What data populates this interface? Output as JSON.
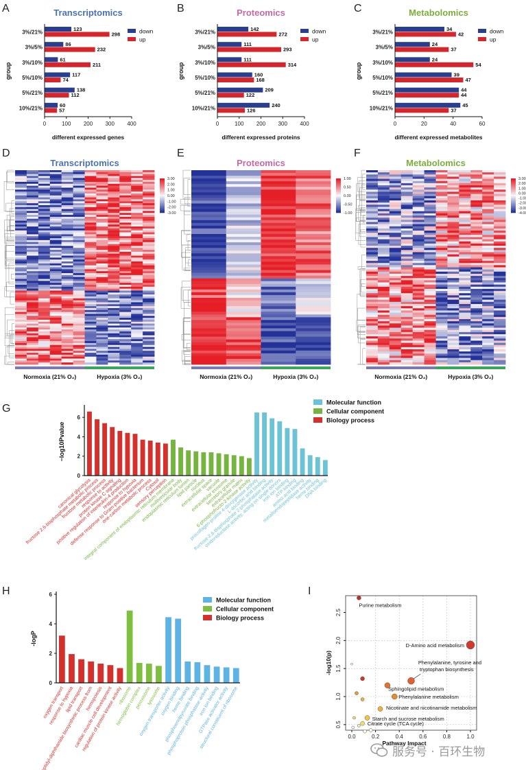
{
  "panels": {
    "A": "A",
    "B": "B",
    "C": "C",
    "D": "D",
    "E": "E",
    "F": "F",
    "G": "G",
    "H": "H",
    "I": "I"
  },
  "colors": {
    "down": "#283f8f",
    "up": "#d7262b",
    "transcriptomics": "#4a72b4",
    "proteomics": "#c668a8",
    "metabolomics": "#7cae3c",
    "mf": "#6cc3d6",
    "cc": "#76b440",
    "bp": "#d4302c",
    "mf_h": "#5db3e4",
    "cc_h": "#7fbf3f",
    "bp_h": "#d4302c"
  },
  "bar_legend": {
    "down": "down",
    "up": "up"
  },
  "bar_group_label": "group",
  "heat_labels": {
    "normoxia": "Normoxia (21% O₂)",
    "hypoxia": "Hypoxia (3% O₂)"
  },
  "go_legend": {
    "mf": "Molecular function",
    "cc": "Cellular component",
    "bp": "Biology process"
  },
  "watermark": {
    "text": "服务号 · 百环生物",
    "icon": "wechat-icon"
  },
  "chart_data": [
    {
      "id": "A",
      "type": "bar",
      "title": "Transcriptomics",
      "categories": [
        "3%/21%",
        "3%/5%",
        "3%/10%",
        "5%/10%",
        "5%/21%",
        "10%/21%"
      ],
      "series": [
        {
          "name": "down",
          "values": [
            123,
            86,
            61,
            117,
            138,
            60
          ]
        },
        {
          "name": "up",
          "values": [
            298,
            232,
            211,
            74,
            112,
            57
          ]
        }
      ],
      "xlabel": "different expressed genes",
      "ylabel": "group",
      "xlim": [
        0,
        400
      ],
      "xticks": [
        0,
        100,
        200,
        300,
        400
      ]
    },
    {
      "id": "B",
      "type": "bar",
      "title": "Proteomics",
      "categories": [
        "3%/21%",
        "3%/5%",
        "3%/10%",
        "5%/10%",
        "5%/21%",
        "10%/21%"
      ],
      "series": [
        {
          "name": "down",
          "values": [
            142,
            111,
            111,
            160,
            209,
            240
          ]
        },
        {
          "name": "up",
          "values": [
            272,
            293,
            314,
            168,
            122,
            126
          ]
        }
      ],
      "xlabel": "different expressed proteins",
      "ylabel": "group",
      "xlim": [
        0,
        400
      ],
      "xticks": [
        0,
        100,
        200,
        300,
        400
      ]
    },
    {
      "id": "C",
      "type": "bar",
      "title": "Metabolomics",
      "categories": [
        "3%/21%",
        "3%/5%",
        "3%/10%",
        "5%/10%",
        "5%/21%",
        "10%/21%"
      ],
      "series": [
        {
          "name": "down",
          "values": [
            34,
            24,
            24,
            39,
            44,
            45
          ]
        },
        {
          "name": "up",
          "values": [
            42,
            37,
            54,
            47,
            44,
            37
          ]
        }
      ],
      "xlabel": "different expressed metabolites",
      "ylabel": "group",
      "xlim": [
        0,
        60
      ],
      "xticks": [
        0,
        20,
        40,
        60
      ]
    },
    {
      "id": "D",
      "type": "heatmap",
      "title": "Transcriptomics",
      "colorbar": [
        "3.00",
        "2.00",
        "1.00",
        "0.00",
        "-1.00",
        "-2.00",
        "-3.00"
      ],
      "groups": [
        "Normoxia (21% O₂)",
        "Hypoxia (3% O₂)"
      ]
    },
    {
      "id": "E",
      "type": "heatmap",
      "title": "Proteomics",
      "colorbar": [
        "1.00",
        "0.50",
        "0.00",
        "-0.50",
        "-1.00"
      ],
      "groups": [
        "Normoxia (21% O₂)",
        "Hypoxia (3% O₂)"
      ]
    },
    {
      "id": "F",
      "type": "heatmap",
      "title": "Metabolomics",
      "colorbar": [
        "3.00",
        "2.00",
        "1.00",
        "0.00",
        "-1.00",
        "-2.00",
        "-3.00",
        "-4.00"
      ],
      "groups": [
        "Normoxia (21% O₂)",
        "Hypoxia (3% O₂)"
      ]
    },
    {
      "id": "G",
      "type": "bar",
      "ylabel": "−log10Pvalue",
      "ylim": [
        0,
        7
      ],
      "yticks": [
        0,
        2,
        4,
        6
      ],
      "bars": [
        {
          "label": "canonical glycolysis",
          "value": 6.6,
          "group": "bp"
        },
        {
          "label": "fructose 2,6-bisphosphate metabolic process",
          "value": 5.8,
          "group": "bp"
        },
        {
          "label": "fructose metabolic process",
          "value": 5.4,
          "group": "bp"
        },
        {
          "label": "response to activity",
          "value": 5.0,
          "group": "bp"
        },
        {
          "label": "protein kinase C signaling",
          "value": 4.6,
          "group": "bp"
        },
        {
          "label": "positive regulation of interleukin-4 production",
          "value": 4.4,
          "group": "bp"
        },
        {
          "label": "response to hypoxia",
          "value": 4.3,
          "group": "bp"
        },
        {
          "label": "defense response to Gram-positive bacterium",
          "value": 3.7,
          "group": "bp"
        },
        {
          "label": "one-carbon metabolic process",
          "value": 3.6,
          "group": "bp"
        },
        {
          "label": "Cytosol",
          "value": 3.4,
          "group": "bp"
        },
        {
          "label": "sensory perception",
          "value": 3.3,
          "group": "bp"
        },
        {
          "label": "integral component of endoplasmic reticulum membrane",
          "value": 3.7,
          "group": "cc"
        },
        {
          "label": "multivesicular body",
          "value": 2.9,
          "group": "cc"
        },
        {
          "label": "endoplasmic reticulum lumen",
          "value": 2.6,
          "group": "cc"
        },
        {
          "label": "lipid particle",
          "value": 2.5,
          "group": "cc"
        },
        {
          "label": "nucleus",
          "value": 2.4,
          "group": "cc"
        },
        {
          "label": "extracellular space",
          "value": 2.4,
          "group": "cc"
        },
        {
          "label": "vacuole",
          "value": 2.3,
          "group": "cc"
        },
        {
          "label": "extracellular exosome",
          "value": 2.2,
          "group": "cc"
        },
        {
          "label": "secretory granule",
          "value": 2.1,
          "group": "cc"
        },
        {
          "label": "extracellular matrix",
          "value": 2.0,
          "group": "cc"
        },
        {
          "label": "6-phosphofructo-2-kinase activity",
          "value": 1.8,
          "group": "cc"
        },
        {
          "label": "procollagen-proline 4-dioxygenase activity",
          "value": 6.5,
          "group": "mf"
        },
        {
          "label": "L-ascorbic acid binding",
          "value": 6.5,
          "group": "mf"
        },
        {
          "label": "fructose-2,6-bisphosphate 2-phosphatase activity",
          "value": 5.9,
          "group": "mf"
        },
        {
          "label": "oxidoreductase activity, acting on single donors",
          "value": 5.6,
          "group": "mf"
        },
        {
          "label": "iron ion binding",
          "value": 4.9,
          "group": "mf"
        },
        {
          "label": "ATP binding",
          "value": 4.8,
          "group": "mf"
        },
        {
          "label": "amino acid binding",
          "value": 2.8,
          "group": "mf"
        },
        {
          "label": "metalloendopeptidase activity",
          "value": 2.1,
          "group": "mf"
        },
        {
          "label": "heme binding",
          "value": 1.9,
          "group": "mf"
        },
        {
          "label": "DNA binding",
          "value": 1.6,
          "group": "mf"
        }
      ],
      "legend": [
        "Molecular function",
        "Cellular component",
        "Biology process"
      ]
    },
    {
      "id": "H",
      "type": "bar",
      "ylabel": "-logP",
      "ylim": [
        0,
        6
      ],
      "yticks": [
        0,
        2,
        4,
        6
      ],
      "bars": [
        {
          "label": "oxygen transport",
          "value": 3.2,
          "group": "bp"
        },
        {
          "label": "response to hypoxia",
          "value": 1.95,
          "group": "bp"
        },
        {
          "label": "lipid transport",
          "value": 1.6,
          "group": "bp"
        },
        {
          "label": "peptidyl-diphthamide biosynthetic process from",
          "value": 1.45,
          "group": "bp"
        },
        {
          "label": "hemopoiesis",
          "value": 1.3,
          "group": "bp"
        },
        {
          "label": "cardiac muscle cell development",
          "value": 1.2,
          "group": "bp"
        },
        {
          "label": "regulation of protein kinase activity",
          "value": 1.0,
          "group": "bp"
        },
        {
          "label": "ribosome",
          "value": 4.9,
          "group": "cc"
        },
        {
          "label": "hemoglobin complex",
          "value": 1.35,
          "group": "cc"
        },
        {
          "label": "peroxisome",
          "value": 1.3,
          "group": "cc"
        },
        {
          "label": "lysosome",
          "value": 1.15,
          "group": "cc"
        },
        {
          "label": "oxygen transporter activity",
          "value": 4.45,
          "group": "mf"
        },
        {
          "label": "oxygen binding",
          "value": 4.35,
          "group": "mf"
        },
        {
          "label": "heme binding",
          "value": 1.45,
          "group": "mf"
        },
        {
          "label": "phosphoenolpyruvate binding",
          "value": 1.4,
          "group": "mf"
        },
        {
          "label": "phosphoprotein phosphatase activity",
          "value": 1.2,
          "group": "mf"
        },
        {
          "label": "iron ion binding",
          "value": 1.1,
          "group": "mf"
        },
        {
          "label": "GTPase activator activity",
          "value": 1.05,
          "group": "mf"
        },
        {
          "label": "structural constituent of ribosome",
          "value": 1.0,
          "group": "mf"
        }
      ],
      "legend": [
        "Molecular function",
        "Cellular component",
        "Biology process"
      ]
    },
    {
      "id": "I",
      "type": "scatter",
      "xlabel": "Pathway Impact",
      "ylabel": "-log10(p)",
      "xlim": [
        0,
        1.0
      ],
      "ylim": [
        0.4,
        2.8
      ],
      "xticks": [
        "0.0",
        "0.2",
        "0.4",
        "0.6",
        "0.8",
        "1.0"
      ],
      "yticks": [
        "0.5",
        "1.0",
        "1.5",
        "2.0",
        "2.5"
      ],
      "points": [
        {
          "label": "Purine metabolism",
          "x": 0.06,
          "y": 2.76,
          "size": 3,
          "color": "#c0302a"
        },
        {
          "label": "D-Amino acid metabolism",
          "x": 1.0,
          "y": 1.92,
          "size": 6,
          "color": "#d23a2c"
        },
        {
          "label": "Phenylalanine, tyrosine and tryptophan biosynthesis",
          "x": 0.5,
          "y": 1.28,
          "size": 5,
          "color": "#e06030"
        },
        {
          "label": "Sphingolipid metabolism",
          "x": 0.3,
          "y": 1.2,
          "size": 4,
          "color": "#e2722f"
        },
        {
          "label": "Phenylalanine metabolism",
          "x": 0.36,
          "y": 1.0,
          "size": 4,
          "color": "#e88a30"
        },
        {
          "label": "Nicotinate and nicotinamide metabolism",
          "x": 0.24,
          "y": 0.78,
          "size": 3.5,
          "color": "#efb03c"
        },
        {
          "label": "Starch and sucrose metabolism",
          "x": 0.13,
          "y": 0.62,
          "size": 3.5,
          "color": "#f3c642"
        },
        {
          "label": "Citrate cycle (TCA cycle)",
          "x": 0.09,
          "y": 0.52,
          "size": 3,
          "color": "#f6df66"
        },
        {
          "label": "",
          "x": 0.0,
          "y": 1.58,
          "size": 1.5,
          "color": "#ffffff"
        },
        {
          "label": "",
          "x": 0.09,
          "y": 1.32,
          "size": 3,
          "color": "#c93a2c"
        },
        {
          "label": "",
          "x": 0.04,
          "y": 1.06,
          "size": 2.5,
          "color": "#e49a3a"
        },
        {
          "label": "",
          "x": 0.09,
          "y": 0.95,
          "size": 2.5,
          "color": "#eab040"
        },
        {
          "label": "",
          "x": 0.02,
          "y": 0.62,
          "size": 2,
          "color": "#f3e27a"
        },
        {
          "label": "",
          "x": 0.06,
          "y": 0.48,
          "size": 2,
          "color": "#fbf3c0"
        },
        {
          "label": "",
          "x": 0.11,
          "y": 0.38,
          "size": 2.5,
          "color": "#fff9dd"
        },
        {
          "label": "",
          "x": 0.16,
          "y": 0.4,
          "size": 2.5,
          "color": "#fffbea"
        },
        {
          "label": "",
          "x": 0.01,
          "y": 0.45,
          "size": 2,
          "color": "#fefce8"
        }
      ],
      "refs": {
        "vx": [
          0.2,
          0.4,
          0.6,
          0.8,
          1.0
        ],
        "hy": [
          0.5,
          1.0,
          1.5,
          2.0
        ]
      }
    }
  ]
}
